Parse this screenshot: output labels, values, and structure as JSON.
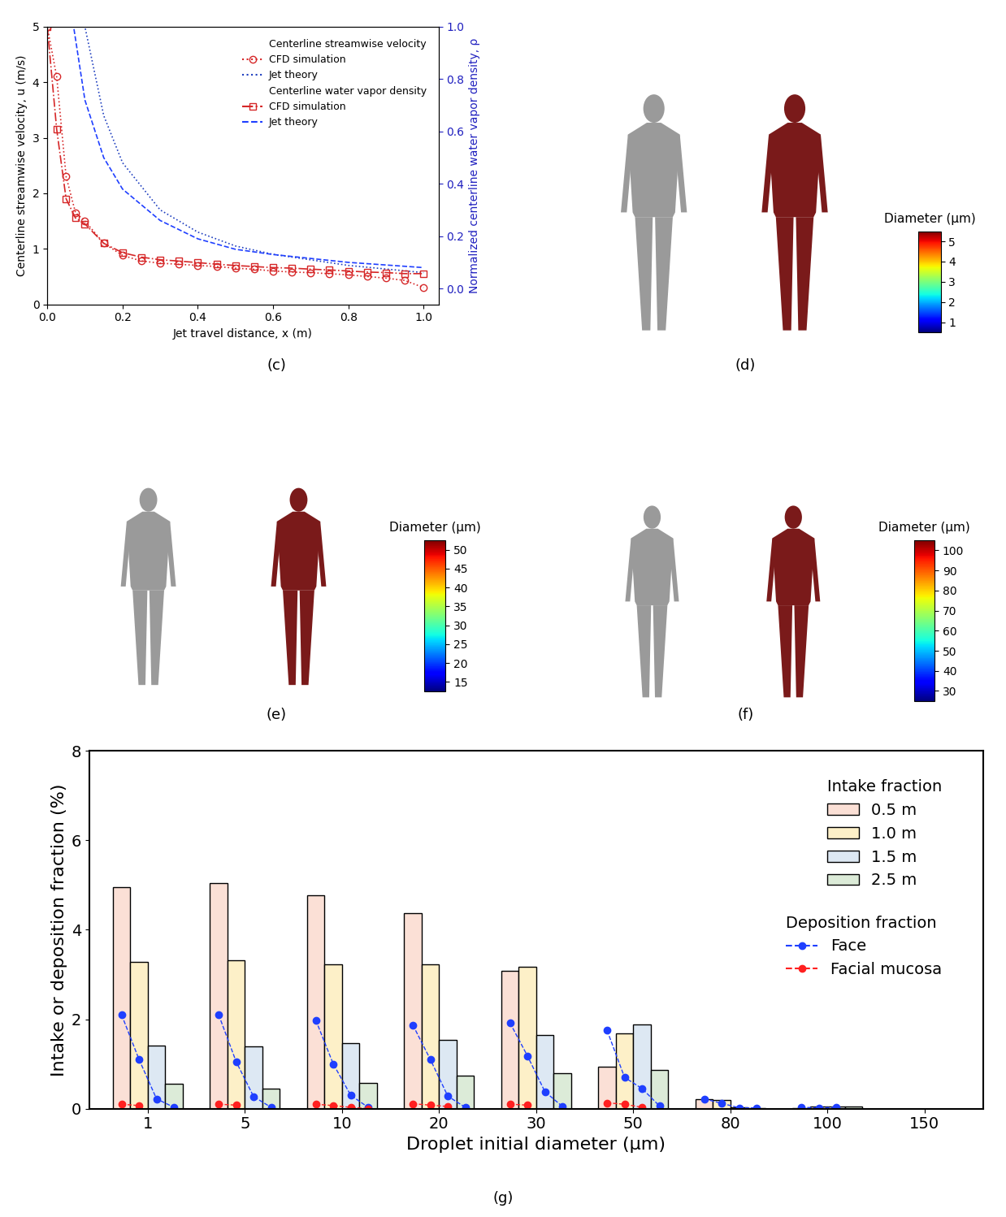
{
  "chart_data": [
    {
      "type": "line",
      "caption": "(c)",
      "x_label": "Jet travel distance, x (m)",
      "y_label": "Centerline streamwise velocity, u (m/s)",
      "y2_label": "Normalized centerline water vapor density, ρ",
      "xlim": [
        0,
        1.04
      ],
      "xticks": [
        {
          "value": 0,
          "label": "0.0"
        },
        {
          "value": 0.2,
          "label": "0.2"
        },
        {
          "value": 0.4,
          "label": "0.4"
        },
        {
          "value": 0.6,
          "label": "0.6"
        },
        {
          "value": 0.8,
          "label": "0.8"
        },
        {
          "value": 1.0,
          "label": "1.0"
        }
      ],
      "ylim": [
        0,
        5
      ],
      "yticks": [
        0,
        1,
        2,
        3,
        4,
        5
      ],
      "y2lim": [
        -0.06,
        1.0
      ],
      "y2ticks": [
        {
          "value": 0,
          "label": "0.0"
        },
        {
          "value": 0.2,
          "label": "0.2"
        },
        {
          "value": 0.4,
          "label": "0.4"
        },
        {
          "value": 0.6,
          "label": "0.6"
        },
        {
          "value": 0.8,
          "label": "0.8"
        },
        {
          "value": 1.0,
          "label": "1.0"
        }
      ],
      "legend": "upper right",
      "series": [
        {
          "group": "Centerline streamwise velocity",
          "name": "CFD simulation",
          "color": "#d62728",
          "marker": "o",
          "line_style": "dotted",
          "x": [
            0,
            0.025,
            0.05,
            0.075,
            0.1,
            0.15,
            0.2,
            0.25,
            0.3,
            0.35,
            0.4,
            0.45,
            0.5,
            0.55,
            0.6,
            0.65,
            0.7,
            0.75,
            0.8,
            0.85,
            0.9,
            0.95,
            1.0
          ],
          "values": [
            5.0,
            4.1,
            2.3,
            1.65,
            1.5,
            1.1,
            0.88,
            0.78,
            0.74,
            0.72,
            0.7,
            0.68,
            0.65,
            0.63,
            0.6,
            0.58,
            0.57,
            0.55,
            0.53,
            0.5,
            0.47,
            0.43,
            0.3
          ]
        },
        {
          "group": "Centerline streamwise velocity",
          "name": "Jet theory",
          "color": "#1f3fbf",
          "marker": "none",
          "line_style": "dotted",
          "x": [
            0,
            0.1,
            0.15,
            0.2,
            0.3,
            0.4,
            0.5,
            0.6,
            0.8,
            1.0
          ],
          "values": [
            5.0,
            5.0,
            3.4,
            2.55,
            1.7,
            1.3,
            1.05,
            0.9,
            0.7,
            0.57
          ]
        },
        {
          "group": "Centerline water vapor density",
          "name": "CFD simulation",
          "color": "#d62728",
          "marker": "s",
          "line_style": "dashdot",
          "axis": "y2",
          "x": [
            0,
            0.025,
            0.05,
            0.075,
            0.1,
            0.15,
            0.2,
            0.25,
            0.3,
            0.35,
            0.4,
            0.45,
            0.5,
            0.55,
            0.6,
            0.65,
            0.7,
            0.75,
            0.8,
            0.85,
            0.9,
            0.95,
            1.0
          ],
          "values": [
            1.0,
            0.608,
            0.343,
            0.269,
            0.247,
            0.173,
            0.137,
            0.12,
            0.11,
            0.105,
            0.099,
            0.093,
            0.088,
            0.084,
            0.08,
            0.078,
            0.074,
            0.071,
            0.067,
            0.063,
            0.061,
            0.057,
            0.057
          ]
        },
        {
          "group": "Centerline water vapor density",
          "name": "Jet theory",
          "color": "#1f3fff",
          "marker": "none",
          "line_style": "dashed",
          "axis": "y2",
          "x": [
            0,
            0.07,
            0.1,
            0.15,
            0.2,
            0.3,
            0.4,
            0.5,
            0.6,
            0.8,
            1.0
          ],
          "values": [
            1.0,
            1.0,
            0.72,
            0.5,
            0.38,
            0.26,
            0.19,
            0.15,
            0.13,
            0.1,
            0.08
          ]
        }
      ]
    },
    {
      "type": "image",
      "caption": "(d)",
      "colorbar": {
        "label": "Diameter (μm)",
        "range": [
          0.5,
          5.5
        ],
        "ticks": [
          1,
          2,
          3,
          4,
          5
        ]
      }
    },
    {
      "type": "image",
      "caption": "(e)",
      "colorbar": {
        "label": "Diameter (μm)",
        "range": [
          12.5,
          52.5
        ],
        "ticks": [
          15,
          20,
          25,
          30,
          35,
          40,
          45,
          50
        ]
      }
    },
    {
      "type": "image",
      "caption": "(f)",
      "colorbar": {
        "label": "Diameter (μm)",
        "range": [
          25,
          105
        ],
        "ticks": [
          30,
          40,
          50,
          60,
          70,
          80,
          90,
          100
        ]
      }
    },
    {
      "type": "bar",
      "caption": "(g)",
      "x_label": "Droplet initial diameter (μm)",
      "y_label": "Intake or deposition fraction (%)",
      "categories": [
        "1",
        "5",
        "10",
        "20",
        "30",
        "50",
        "80",
        "100",
        "150"
      ],
      "ylim": [
        0,
        8
      ],
      "yticks": [
        0,
        2,
        4,
        6,
        8
      ],
      "legend": "upper right",
      "series": [
        {
          "group": "Intake fraction",
          "type": "bar",
          "name": "0.5 m",
          "color": "#fbe0d6",
          "values": [
            4.95,
            5.05,
            4.77,
            4.38,
            3.08,
            0.93,
            0.22,
            0.02,
            0
          ]
        },
        {
          "group": "Intake fraction",
          "type": "bar",
          "name": "1.0 m",
          "color": "#fdf0c8",
          "values": [
            3.28,
            3.32,
            3.22,
            3.22,
            3.18,
            1.68,
            0.2,
            0.04,
            0
          ]
        },
        {
          "group": "Intake fraction",
          "type": "bar",
          "name": "1.5 m",
          "color": "#dde8f3",
          "values": [
            1.42,
            1.4,
            1.47,
            1.53,
            1.65,
            1.88,
            0.03,
            0.05,
            0
          ]
        },
        {
          "group": "Intake fraction",
          "type": "bar",
          "name": "2.5 m",
          "color": "#dcebd8",
          "values": [
            0.55,
            0.45,
            0.57,
            0.73,
            0.8,
            0.87,
            0.02,
            0.04,
            0
          ]
        },
        {
          "group": "Deposition fraction",
          "type": "line",
          "name": "Face",
          "color": "#1f3fff",
          "marker": "o",
          "line_style": "dashed",
          "values": [
            [
              2.1,
              1.1,
              0.22,
              0.03
            ],
            [
              2.1,
              1.05,
              0.27,
              0.03
            ],
            [
              1.98,
              1.0,
              0.3,
              0.03
            ],
            [
              1.87,
              1.1,
              0.28,
              0.03
            ],
            [
              1.92,
              1.18,
              0.38,
              0.05
            ],
            [
              1.75,
              0.7,
              0.45,
              0.06
            ],
            [
              0.22,
              0.12,
              0.02,
              0.02
            ],
            [
              0.03,
              0.02,
              0.03,
              null
            ],
            [
              null,
              null,
              null,
              null
            ]
          ]
        },
        {
          "group": "Deposition fraction",
          "type": "line",
          "name": "Facial mucosa",
          "color": "#ff2020",
          "marker": "o",
          "line_style": "dashed",
          "values": [
            [
              0.1,
              0.07,
              null,
              null
            ],
            [
              0.1,
              0.08,
              null,
              null
            ],
            [
              0.1,
              0.07,
              0.03,
              0.0
            ],
            [
              0.11,
              0.08,
              0.05,
              null
            ],
            [
              0.1,
              0.08,
              null,
              null
            ],
            [
              0.13,
              0.1,
              0.03,
              null
            ],
            [
              null,
              null,
              null,
              null
            ],
            [
              null,
              null,
              null,
              null
            ],
            [
              null,
              null,
              null,
              null
            ]
          ]
        }
      ]
    }
  ]
}
